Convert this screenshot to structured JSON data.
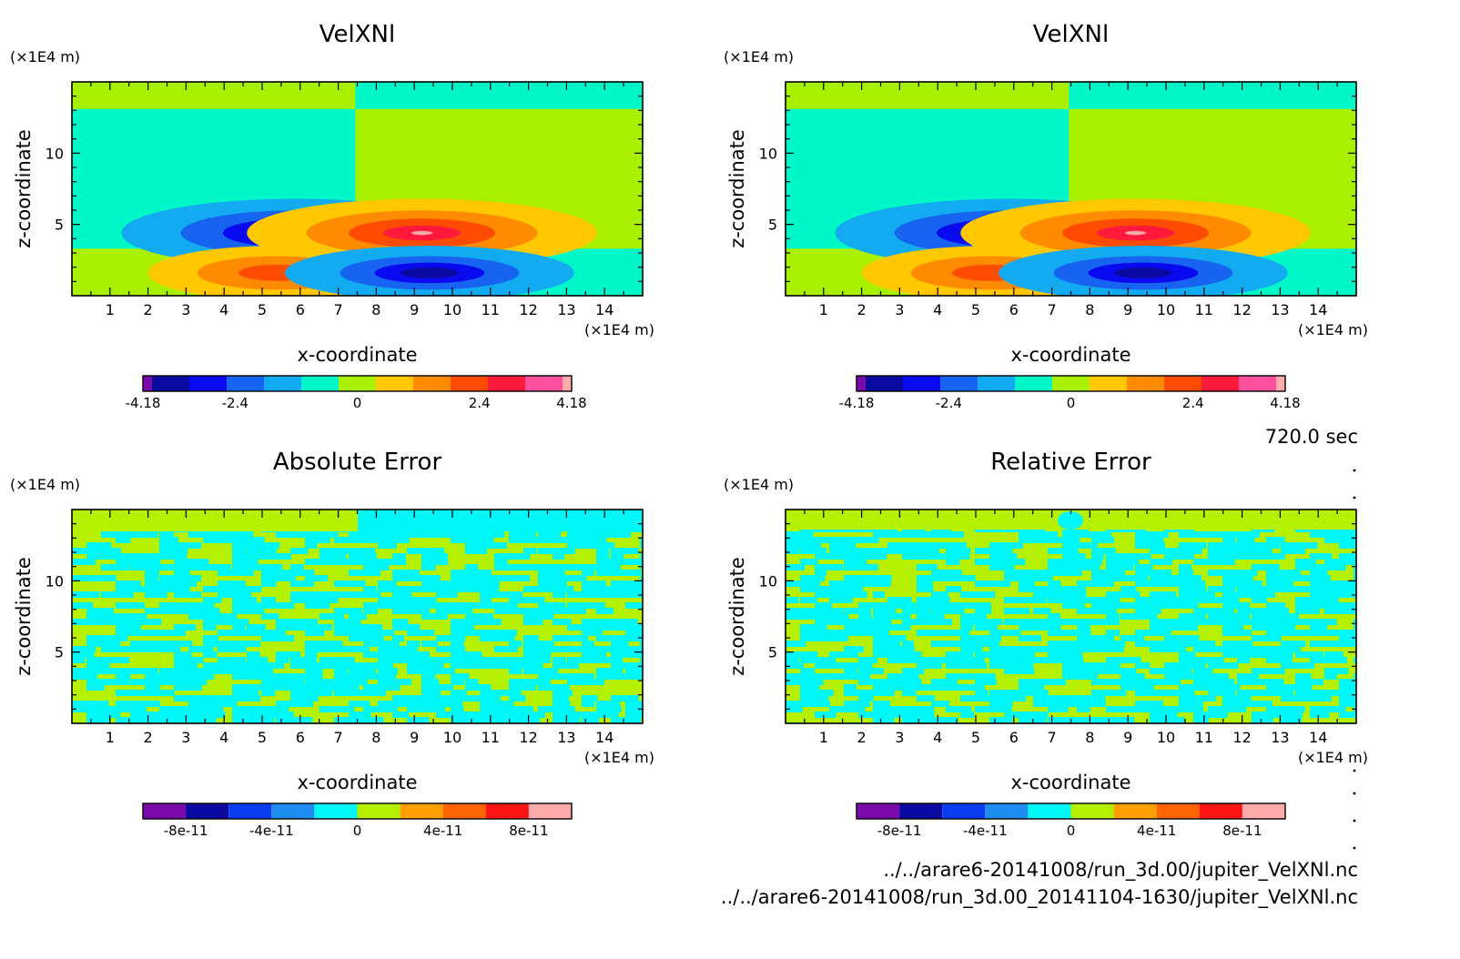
{
  "time_label": "720.0 sec",
  "files": [
    "../../arare6-20141008/run_3d.00/jupiter_VelXNl.nc",
    "../../arare6-20141008/run_3d.00_20141104-1630/jupiter_VelXNl.nc"
  ],
  "chart_data": [
    {
      "type": "heatmap",
      "title": "VelXNl",
      "xlabel": "x-coordinate",
      "ylabel": "z-coordinate",
      "x_unit": "(×1E4 m)",
      "y_unit": "(×1E4 m)",
      "xlim": [
        0,
        15
      ],
      "ylim": [
        0,
        15
      ],
      "xticks": [
        "1",
        "2",
        "3",
        "4",
        "5",
        "6",
        "7",
        "8",
        "9",
        "10",
        "11",
        "12",
        "13",
        "14"
      ],
      "yticks": [
        "5",
        "10"
      ],
      "colorbar": {
        "ticks": [
          "-4.18",
          "-2.4",
          "0",
          "2.4",
          "4.18"
        ],
        "colors": [
          "#7a0aaa",
          "#0a0aa0",
          "#0a0af0",
          "#1664f0",
          "#12aaf0",
          "#00f7c8",
          "#a8f000",
          "#ffc800",
          "#ff8c00",
          "#ff4b00",
          "#ff1a3c",
          "#ff50a0",
          "#ffaaaa"
        ]
      }
    },
    {
      "type": "heatmap",
      "title": "VelXNl",
      "xlabel": "x-coordinate",
      "ylabel": "z-coordinate",
      "x_unit": "(×1E4 m)",
      "y_unit": "(×1E4 m)",
      "xlim": [
        0,
        15
      ],
      "ylim": [
        0,
        15
      ],
      "xticks": [
        "1",
        "2",
        "3",
        "4",
        "5",
        "6",
        "7",
        "8",
        "9",
        "10",
        "11",
        "12",
        "13",
        "14"
      ],
      "yticks": [
        "5",
        "10"
      ],
      "colorbar": {
        "ticks": [
          "-4.18",
          "-2.4",
          "0",
          "2.4",
          "4.18"
        ],
        "colors": [
          "#7a0aaa",
          "#0a0aa0",
          "#0a0af0",
          "#1664f0",
          "#12aaf0",
          "#00f7c8",
          "#a8f000",
          "#ffc800",
          "#ff8c00",
          "#ff4b00",
          "#ff1a3c",
          "#ff50a0",
          "#ffaaaa"
        ]
      }
    },
    {
      "type": "heatmap",
      "title": "Absolute Error",
      "xlabel": "x-coordinate",
      "ylabel": "z-coordinate",
      "x_unit": "(×1E4 m)",
      "y_unit": "(×1E4 m)",
      "xlim": [
        0,
        15
      ],
      "ylim": [
        0,
        15
      ],
      "xticks": [
        "1",
        "2",
        "3",
        "4",
        "5",
        "6",
        "7",
        "8",
        "9",
        "10",
        "11",
        "12",
        "13",
        "14"
      ],
      "yticks": [
        "5",
        "10"
      ],
      "colorbar": {
        "ticks": [
          "-8e-11",
          "-4e-11",
          "0",
          "4e-11",
          "8e-11"
        ],
        "colors": [
          "#7a0aaa",
          "#0a0aa0",
          "#0a3cf0",
          "#1e8cf0",
          "#00f7f7",
          "#b4f000",
          "#ffa000",
          "#ff6400",
          "#ff1414",
          "#ffaaaa"
        ]
      }
    },
    {
      "type": "heatmap",
      "title": "Relative Error",
      "xlabel": "x-coordinate",
      "ylabel": "z-coordinate",
      "x_unit": "(×1E4 m)",
      "y_unit": "(×1E4 m)",
      "xlim": [
        0,
        15
      ],
      "ylim": [
        0,
        15
      ],
      "xticks": [
        "1",
        "2",
        "3",
        "4",
        "5",
        "6",
        "7",
        "8",
        "9",
        "10",
        "11",
        "12",
        "13",
        "14"
      ],
      "yticks": [
        "5",
        "10"
      ],
      "colorbar": {
        "ticks": [
          "-8e-11",
          "-4e-11",
          "0",
          "4e-11",
          "8e-11"
        ],
        "colors": [
          "#7a0aaa",
          "#0a0aa0",
          "#0a3cf0",
          "#1e8cf0",
          "#00f7f7",
          "#b4f000",
          "#ffa000",
          "#ff6400",
          "#ff1414",
          "#ffaaaa"
        ]
      }
    }
  ]
}
